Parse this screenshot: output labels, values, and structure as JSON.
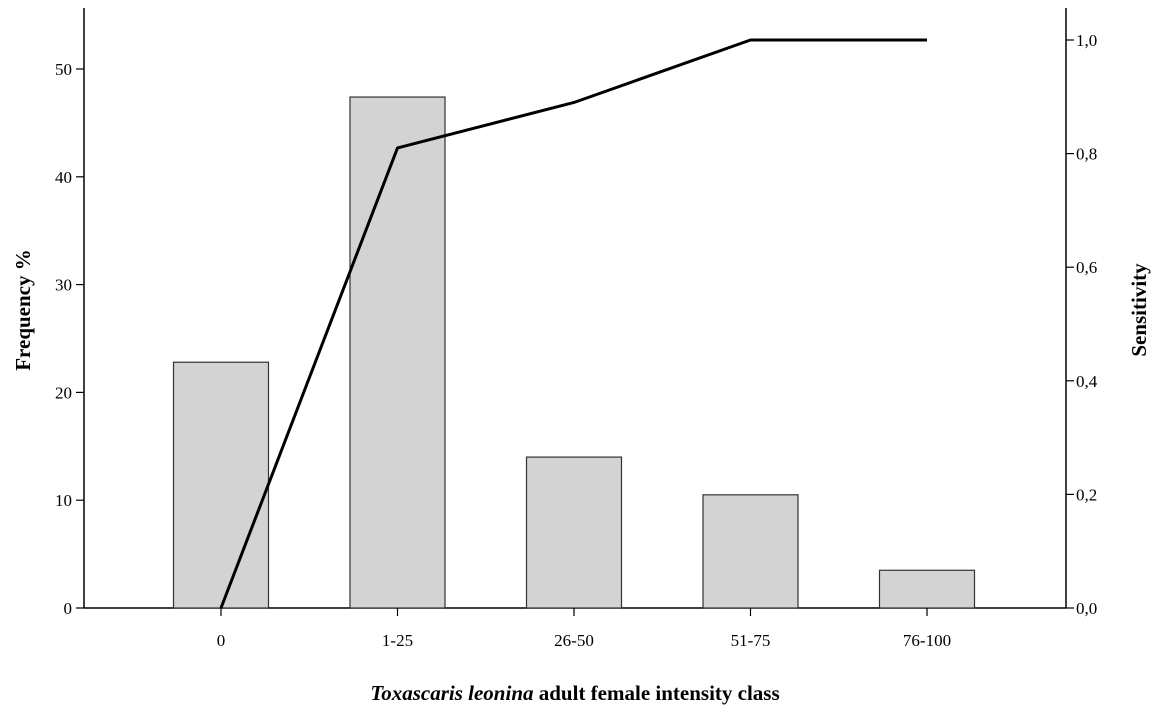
{
  "chart_data": {
    "type": "bar",
    "categories": [
      "0",
      "1-25",
      "26-50",
      "51-75",
      "76-100"
    ],
    "series": [
      {
        "type": "bar",
        "axis": "left",
        "values": [
          22.8,
          47.4,
          14.0,
          10.5,
          3.5
        ],
        "color": "#d3d3d3"
      },
      {
        "type": "line",
        "axis": "right",
        "values": [
          0.0,
          0.81,
          0.89,
          1.0,
          1.0
        ],
        "color": "#000000"
      }
    ],
    "xlabel_italic": "Toxascaris leonina",
    "xlabel_rest": " adult female intensity class",
    "ylabel": "Frequency %",
    "y2label": "Sensitivity",
    "ylim": [
      0,
      55
    ],
    "y2lim": [
      0,
      1.0
    ],
    "yticks": [
      0,
      10,
      20,
      30,
      40,
      50
    ],
    "y2ticks": [
      "0,0",
      "0,2",
      "0,4",
      "0,6",
      "0,8",
      "1,0"
    ],
    "grid": false,
    "legend": "none"
  }
}
